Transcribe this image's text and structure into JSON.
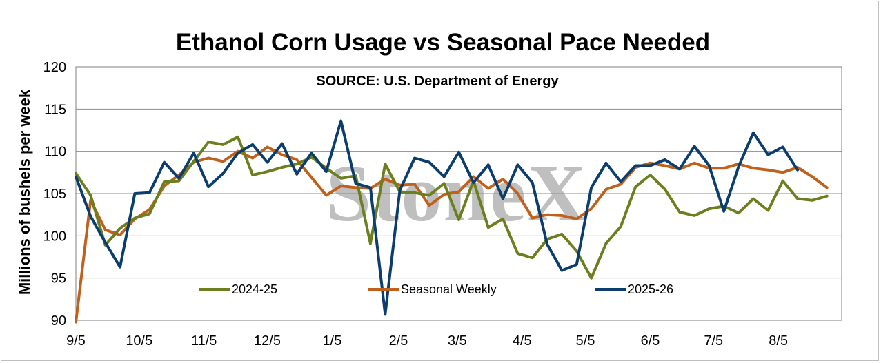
{
  "chart_data": {
    "type": "line",
    "title": "Ethanol Corn Usage vs Seasonal Pace Needed",
    "source_note": "SOURCE: U.S. Department of Energy",
    "watermark": "StoneX",
    "ylabel": "Millions of bushels per week",
    "xlabel": "",
    "ylim": [
      90,
      120
    ],
    "yticks": [
      90,
      95,
      100,
      105,
      110,
      115,
      120
    ],
    "x_weeks": 52,
    "xtick_labels": [
      "9/5",
      "10/5",
      "11/5",
      "12/5",
      "1/5",
      "2/5",
      "3/5",
      "4/5",
      "5/5",
      "6/5",
      "7/5",
      "8/5"
    ],
    "xtick_weeks": [
      0,
      4.3,
      8.7,
      13,
      17.4,
      21.9,
      25.9,
      30.3,
      34.6,
      39,
      43.3,
      47.7
    ],
    "grid": "horizontal",
    "legend_position": "bottom-inside",
    "series": [
      {
        "name": "2024-25",
        "color": "#6b7f1f",
        "values": [
          107.4,
          104.8,
          98.9,
          100.9,
          102.1,
          102.6,
          106.4,
          106.5,
          108.8,
          111.1,
          110.8,
          111.7,
          107.2,
          107.6,
          108.1,
          108.5,
          109.3,
          108.0,
          106.8,
          107.1,
          99.1,
          108.5,
          105.2,
          105.1,
          104.8,
          106.2,
          101.9,
          106.5,
          101.0,
          102.0,
          97.9,
          97.4,
          99.6,
          100.2,
          98.2,
          95.0,
          99.1,
          101.1,
          105.8,
          107.2,
          105.5,
          102.8,
          102.4,
          103.2,
          103.5,
          102.7,
          104.4,
          103.0,
          106.5,
          104.4,
          104.2,
          104.7
        ]
      },
      {
        "name": "Seasonal Weekly",
        "color": "#c0601a",
        "values": [
          89.8,
          104.2,
          100.7,
          100.1,
          102.0,
          103.1,
          105.9,
          107.2,
          108.7,
          109.2,
          108.8,
          110.0,
          109.2,
          110.5,
          109.6,
          109.0,
          106.9,
          104.8,
          105.9,
          105.7,
          105.6,
          106.7,
          106.0,
          106.1,
          103.6,
          104.9,
          105.2,
          107.0,
          105.6,
          106.7,
          105.0,
          102.1,
          102.5,
          102.4,
          102.0,
          103.2,
          105.5,
          106.1,
          108.1,
          108.6,
          108.3,
          107.9,
          108.6,
          108.0,
          108.0,
          108.5,
          108.0,
          107.8,
          107.5,
          108.1,
          107.0,
          105.7
        ]
      },
      {
        "name": "2025-26",
        "color": "#0b3d6e",
        "values": [
          107.0,
          102.3,
          99.2,
          96.3,
          105.0,
          105.1,
          108.7,
          106.8,
          109.8,
          105.8,
          107.4,
          109.8,
          110.8,
          108.7,
          110.9,
          107.3,
          109.8,
          107.6,
          113.6,
          106.2,
          105.7,
          90.7,
          105.4,
          109.2,
          108.7,
          107.0,
          109.9,
          106.3,
          108.4,
          104.4,
          108.4,
          106.3,
          99.0,
          95.9,
          96.6,
          105.7,
          108.6,
          106.4,
          108.3,
          108.3,
          109.0,
          107.9,
          110.6,
          108.3,
          102.9,
          108.2,
          112.2,
          109.6,
          110.5,
          107.8
        ]
      }
    ]
  }
}
